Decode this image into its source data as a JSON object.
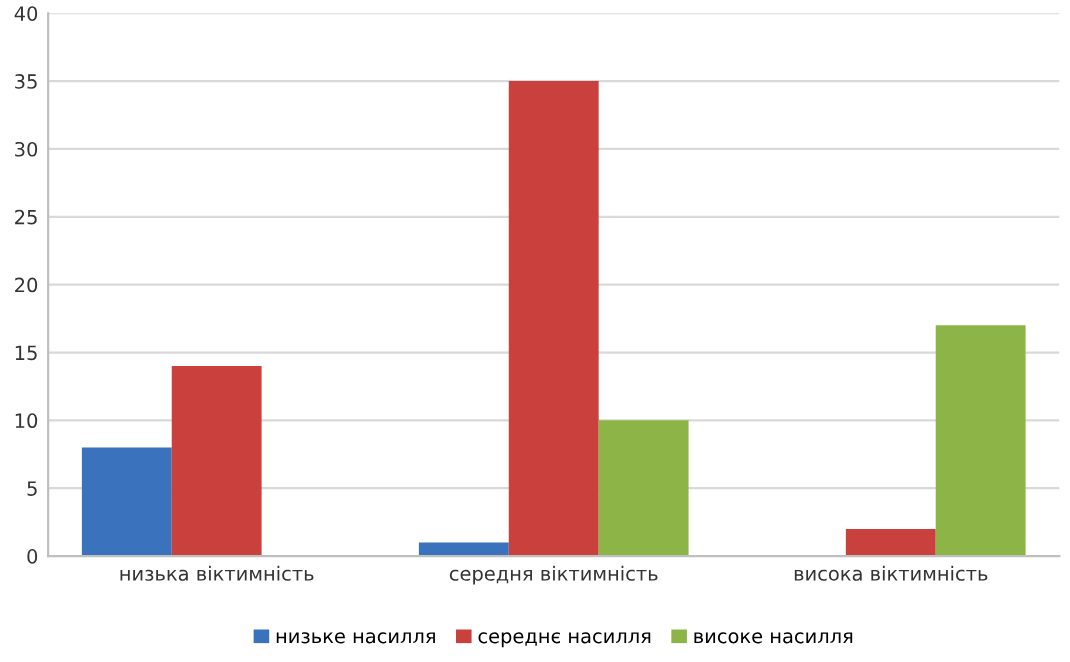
{
  "chart_data": {
    "type": "bar",
    "categories": [
      "низька віктимність",
      "середня віктимність",
      "висока віктимність"
    ],
    "series": [
      {
        "name": "низьке насилля",
        "color": "#3a72bd",
        "values": [
          8,
          1,
          0
        ]
      },
      {
        "name": "середнє насилля",
        "color": "#c9403c",
        "values": [
          14,
          35,
          2
        ]
      },
      {
        "name": "високе насилля",
        "color": "#8db446",
        "values": [
          0,
          10,
          17
        ]
      }
    ],
    "ylim": [
      0,
      40
    ],
    "yticks": [
      0,
      5,
      10,
      15,
      20,
      25,
      30,
      35,
      40
    ],
    "grid": "y",
    "legend": "bottom"
  }
}
